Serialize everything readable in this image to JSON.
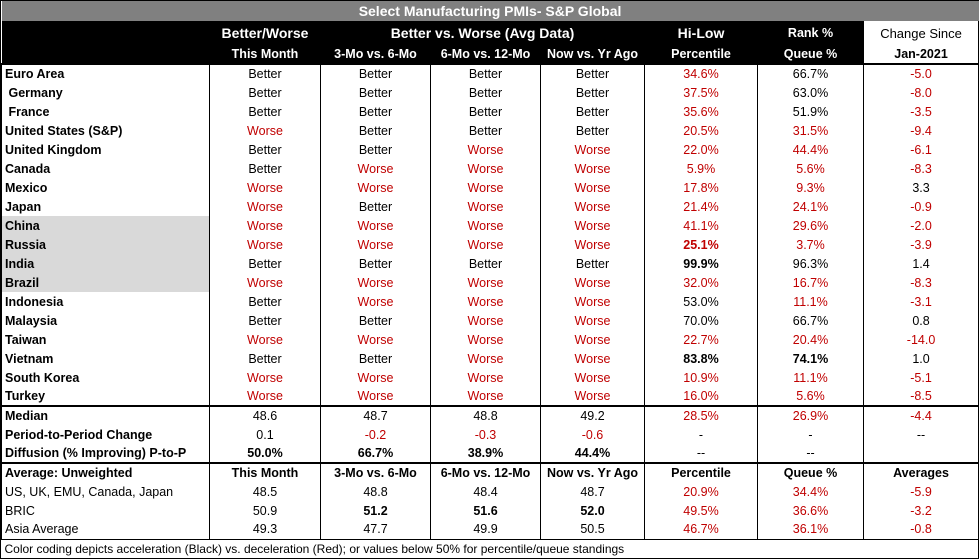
{
  "title": "Select Manufacturing PMIs- S&P Global",
  "header1": {
    "bw": "Better/Worse",
    "avg": "Better vs. Worse (Avg Data)",
    "hilow": "Hi-Low",
    "rank": "Rank %",
    "change": "Change Since"
  },
  "header2": [
    "This Month",
    "3-Mo vs. 6-Mo",
    "6-Mo vs. 12-Mo",
    "Now vs. Yr Ago",
    "Percentile",
    "Queue %",
    "Jan-2021"
  ],
  "rows": [
    {
      "name": "Euro Area",
      "cells": [
        "Better",
        "Better",
        "Better",
        "Better"
      ],
      "pct": "34.6%",
      "queue": "66.7%",
      "chg": "-5.0",
      "pb": false,
      "qb": false,
      "shade": false
    },
    {
      "name": " Germany",
      "cells": [
        "Better",
        "Better",
        "Better",
        "Better"
      ],
      "pct": "37.5%",
      "queue": "63.0%",
      "chg": "-8.0",
      "pb": false,
      "qb": false,
      "shade": false
    },
    {
      "name": " France",
      "cells": [
        "Better",
        "Better",
        "Better",
        "Better"
      ],
      "pct": "35.6%",
      "queue": "51.9%",
      "chg": "-3.5",
      "pb": false,
      "qb": false,
      "shade": false
    },
    {
      "name": "United States (S&P)",
      "cells": [
        "Worse",
        "Better",
        "Better",
        "Better"
      ],
      "pct": "20.5%",
      "queue": "31.5%",
      "chg": "-9.4",
      "pb": false,
      "qb": false,
      "shade": false
    },
    {
      "name": "United Kingdom",
      "cells": [
        "Better",
        "Better",
        "Worse",
        "Worse"
      ],
      "pct": "22.0%",
      "queue": "44.4%",
      "chg": "-6.1",
      "pb": false,
      "qb": false,
      "shade": false
    },
    {
      "name": "Canada",
      "cells": [
        "Better",
        "Worse",
        "Worse",
        "Worse"
      ],
      "pct": "5.9%",
      "queue": "5.6%",
      "chg": "-8.3",
      "pb": false,
      "qb": false,
      "shade": false
    },
    {
      "name": "Mexico",
      "cells": [
        "Worse",
        "Worse",
        "Worse",
        "Worse"
      ],
      "pct": "17.8%",
      "queue": "9.3%",
      "chg": "3.3",
      "pb": false,
      "qb": false,
      "shade": false
    },
    {
      "name": "Japan",
      "cells": [
        "Worse",
        "Better",
        "Worse",
        "Worse"
      ],
      "pct": "21.4%",
      "queue": "24.1%",
      "chg": "-0.9",
      "pb": false,
      "qb": false,
      "shade": false
    },
    {
      "name": "China",
      "cells": [
        "Worse",
        "Worse",
        "Worse",
        "Worse"
      ],
      "pct": "41.1%",
      "queue": "29.6%",
      "chg": "-2.0",
      "pb": false,
      "qb": false,
      "shade": true
    },
    {
      "name": "Russia",
      "cells": [
        "Worse",
        "Worse",
        "Worse",
        "Worse"
      ],
      "pct": "25.1%",
      "queue": "3.7%",
      "chg": "-3.9",
      "pb": true,
      "qb": false,
      "shade": true
    },
    {
      "name": "India",
      "cells": [
        "Better",
        "Better",
        "Better",
        "Better"
      ],
      "pct": "99.9%",
      "queue": "96.3%",
      "chg": "1.4",
      "pb": true,
      "qb": false,
      "shade": true
    },
    {
      "name": "Brazil",
      "cells": [
        "Worse",
        "Worse",
        "Worse",
        "Worse"
      ],
      "pct": "32.0%",
      "queue": "16.7%",
      "chg": "-8.3",
      "pb": false,
      "qb": false,
      "shade": true
    },
    {
      "name": "Indonesia",
      "cells": [
        "Better",
        "Worse",
        "Worse",
        "Worse"
      ],
      "pct": "53.0%",
      "queue": "11.1%",
      "chg": "-3.1",
      "pb": false,
      "qb": false,
      "shade": false
    },
    {
      "name": "Malaysia",
      "cells": [
        "Better",
        "Better",
        "Worse",
        "Worse"
      ],
      "pct": "70.0%",
      "queue": "66.7%",
      "chg": "0.8",
      "pb": false,
      "qb": false,
      "shade": false
    },
    {
      "name": "Taiwan",
      "cells": [
        "Worse",
        "Worse",
        "Worse",
        "Worse"
      ],
      "pct": "22.7%",
      "queue": "20.4%",
      "chg": "-14.0",
      "pb": false,
      "qb": false,
      "shade": false
    },
    {
      "name": "Vietnam",
      "cells": [
        "Better",
        "Better",
        "Worse",
        "Worse"
      ],
      "pct": "83.8%",
      "queue": "74.1%",
      "chg": "1.0",
      "pb": true,
      "qb": true,
      "shade": false
    },
    {
      "name": "South Korea",
      "cells": [
        "Worse",
        "Worse",
        "Worse",
        "Worse"
      ],
      "pct": "10.9%",
      "queue": "11.1%",
      "chg": "-5.1",
      "pb": false,
      "qb": false,
      "shade": false
    },
    {
      "name": "Turkey",
      "cells": [
        "Worse",
        "Worse",
        "Worse",
        "Worse"
      ],
      "pct": "16.0%",
      "queue": "5.6%",
      "chg": "-8.5",
      "pb": false,
      "qb": false,
      "shade": false
    }
  ],
  "summary": [
    {
      "name": "Median",
      "vals": [
        "48.6",
        "48.7",
        "48.8",
        "49.2",
        "28.5%",
        "26.9%",
        "-4.4"
      ],
      "bold": [
        false,
        false,
        false,
        false,
        false,
        false,
        false
      ]
    },
    {
      "name": "Period-to-Period Change",
      "vals": [
        "0.1",
        "-0.2",
        "-0.3",
        "-0.6",
        "-",
        "-",
        "--"
      ],
      "bold": [
        false,
        false,
        false,
        false,
        false,
        false,
        false
      ]
    },
    {
      "name": "Diffusion (% Improving) P-to-P",
      "vals": [
        "50.0%",
        "66.7%",
        "38.9%",
        "44.4%",
        "--",
        "--",
        ""
      ],
      "bold": [
        true,
        true,
        true,
        true,
        false,
        false,
        false
      ]
    }
  ],
  "avg_header": {
    "name": "Average: Unweighted",
    "vals": [
      "This Month",
      "3-Mo vs. 6-Mo",
      "6-Mo vs. 12-Mo",
      "Now vs. Yr Ago",
      "Percentile",
      "Queue %",
      "Averages"
    ]
  },
  "averages": [
    {
      "name": "US, UK, EMU, Canada, Japan",
      "vals": [
        "48.5",
        "48.8",
        "48.4",
        "48.7",
        "20.9%",
        "34.4%",
        "-5.9"
      ],
      "bold": [
        false,
        false,
        false,
        false,
        false,
        false,
        false
      ]
    },
    {
      "name": "BRIC",
      "vals": [
        "50.9",
        "51.2",
        "51.6",
        "52.0",
        "49.5%",
        "36.6%",
        "-3.2"
      ],
      "bold": [
        false,
        true,
        true,
        true,
        false,
        false,
        false
      ]
    },
    {
      "name": "Asia Average",
      "vals": [
        "49.3",
        "47.7",
        "49.9",
        "50.5",
        "46.7%",
        "36.1%",
        "-0.8"
      ],
      "bold": [
        false,
        false,
        false,
        false,
        false,
        false,
        false
      ]
    }
  ],
  "footnote": "Color coding depicts acceleration (Black) vs. deceleration (Red); or values below 50% for percentile/queue standings",
  "colors": {
    "red": "#c00000",
    "header": "#000000",
    "title": "#808080",
    "shade": "#d9d9d9"
  }
}
